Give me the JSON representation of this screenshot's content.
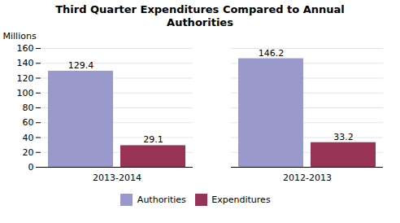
{
  "chart_data": {
    "type": "bar",
    "title": "Third Quarter Expenditures Compared to Annual\nAuthorities",
    "y_label": "Millions",
    "categories": [
      "2013-2014",
      "2012-2013"
    ],
    "series": [
      {
        "name": "Authorities",
        "color": "#9999CC",
        "values": [
          129.4,
          146.2
        ]
      },
      {
        "name": "Expenditures",
        "color": "#993355",
        "values": [
          29.1,
          33.2
        ]
      }
    ],
    "ylim": [
      0,
      160
    ],
    "yticks": [
      0,
      20,
      40,
      60,
      80,
      100,
      120,
      140,
      160
    ],
    "grid": true,
    "legend": "bottom",
    "data_labels": true
  }
}
